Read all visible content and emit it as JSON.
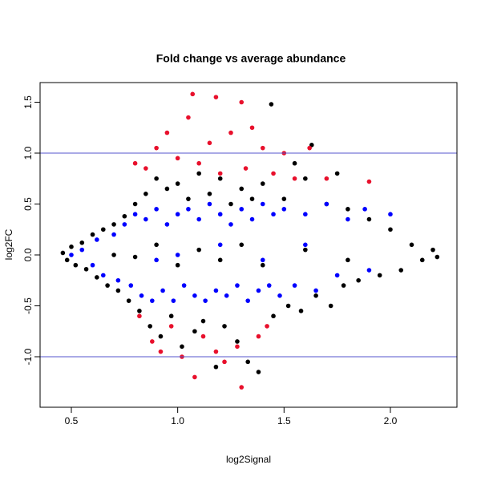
{
  "chart_data": {
    "type": "scatter",
    "title": "Fold change vs average abundance",
    "x_label": "log2Signal",
    "y_label": "log2FC",
    "xlim": [
      0.353,
      2.313
    ],
    "ylim": [
      -1.496,
      1.693
    ],
    "xticks": [
      0.5,
      {
        "value": 1.0,
        "label": "1.0"
      },
      1.5,
      {
        "value": 2.0,
        "label": "2.0"
      }
    ],
    "yticks": [
      {
        "value": -1.0,
        "label": "-1.0"
      },
      -0.5,
      {
        "value": 0.0,
        "label": "0.0"
      },
      0.5,
      {
        "value": 1.0,
        "label": "1.0"
      },
      1.5
    ],
    "hlines": [
      1.0,
      -1.0
    ],
    "hline_color": "#5555cc",
    "series": [
      {
        "color": "#000000",
        "x": [
          0.46,
          0.48,
          0.5,
          0.52,
          0.55,
          0.57,
          0.6,
          0.62,
          0.65,
          0.67,
          0.7,
          0.72,
          0.75,
          0.77,
          0.8,
          0.82,
          0.85,
          0.87,
          0.9,
          0.92,
          0.95,
          0.97,
          1.0,
          1.02,
          1.05,
          1.08,
          1.1,
          1.12,
          1.15,
          1.18,
          1.2,
          1.22,
          1.25,
          1.28,
          1.3,
          1.33,
          1.35,
          1.38,
          1.4,
          1.44,
          1.45,
          1.5,
          1.52,
          1.55,
          1.58,
          1.6,
          1.63,
          1.65,
          1.7,
          1.72,
          1.75,
          1.78,
          1.8,
          1.85,
          1.9,
          1.95,
          2.0,
          2.05,
          2.1,
          2.15,
          2.2,
          2.22,
          0.9,
          1.0,
          1.1,
          1.2,
          1.3,
          1.4,
          1.6,
          1.8,
          0.7,
          0.8
        ],
        "y": [
          0.02,
          -0.05,
          0.08,
          -0.1,
          0.12,
          -0.14,
          0.2,
          -0.22,
          0.25,
          -0.3,
          0.3,
          -0.35,
          0.38,
          -0.45,
          0.5,
          -0.55,
          0.6,
          -0.7,
          0.75,
          -0.8,
          0.65,
          -0.6,
          0.7,
          -0.9,
          0.55,
          -0.75,
          0.8,
          -0.65,
          0.6,
          -1.1,
          0.75,
          -0.7,
          0.5,
          -0.85,
          0.65,
          -1.05,
          0.55,
          -1.15,
          0.7,
          1.48,
          -0.6,
          0.55,
          -0.5,
          0.9,
          -0.55,
          0.75,
          1.08,
          -0.4,
          0.5,
          -0.5,
          0.8,
          -0.3,
          0.45,
          -0.25,
          0.35,
          -0.2,
          0.25,
          -0.15,
          0.1,
          -0.05,
          0.05,
          -0.02,
          0.1,
          -0.1,
          0.05,
          -0.05,
          0.1,
          -0.1,
          0.05,
          -0.05,
          0.0,
          -0.02
        ]
      },
      {
        "color": "#0000ff",
        "x": [
          0.5,
          0.55,
          0.6,
          0.62,
          0.65,
          0.7,
          0.72,
          0.75,
          0.78,
          0.8,
          0.83,
          0.85,
          0.88,
          0.9,
          0.93,
          0.95,
          0.98,
          1.0,
          1.03,
          1.05,
          1.08,
          1.1,
          1.13,
          1.15,
          1.18,
          1.2,
          1.23,
          1.25,
          1.28,
          1.3,
          1.33,
          1.35,
          1.38,
          1.4,
          1.43,
          1.45,
          1.48,
          1.5,
          1.55,
          1.6,
          1.65,
          1.7,
          1.75,
          1.8,
          1.88,
          1.9,
          2.0,
          1.0,
          1.2,
          1.4,
          0.9,
          1.6
        ],
        "y": [
          0.0,
          0.05,
          -0.1,
          0.15,
          -0.2,
          0.2,
          -0.25,
          0.3,
          -0.3,
          0.4,
          -0.4,
          0.35,
          -0.45,
          0.45,
          -0.35,
          0.3,
          -0.45,
          0.4,
          -0.3,
          0.45,
          -0.4,
          0.35,
          -0.45,
          0.5,
          -0.35,
          0.4,
          -0.4,
          0.3,
          -0.3,
          0.45,
          -0.45,
          0.35,
          -0.35,
          0.5,
          -0.3,
          0.4,
          -0.4,
          0.45,
          -0.3,
          0.4,
          -0.35,
          0.5,
          -0.2,
          0.35,
          0.45,
          -0.15,
          0.4,
          0.0,
          0.1,
          -0.05,
          -0.05,
          0.1
        ]
      },
      {
        "color": "#e8102c",
        "x": [
          0.8,
          0.82,
          0.85,
          0.88,
          0.9,
          0.92,
          0.95,
          0.97,
          1.0,
          1.02,
          1.05,
          1.07,
          1.08,
          1.1,
          1.12,
          1.15,
          1.18,
          1.2,
          1.22,
          1.25,
          1.28,
          1.3,
          1.3,
          1.32,
          1.35,
          1.38,
          1.4,
          1.42,
          1.45,
          1.5,
          1.55,
          1.62,
          1.7,
          1.9,
          1.18
        ],
        "y": [
          0.9,
          -0.6,
          0.85,
          -0.85,
          1.05,
          -0.95,
          1.2,
          -0.7,
          0.95,
          -1.0,
          1.35,
          1.58,
          -1.2,
          0.9,
          -0.8,
          1.1,
          -0.95,
          0.8,
          -1.05,
          1.2,
          -0.9,
          1.5,
          -1.3,
          0.85,
          1.25,
          -0.8,
          1.05,
          -0.7,
          0.8,
          1.0,
          0.75,
          1.05,
          0.75,
          0.72,
          1.55
        ]
      }
    ]
  }
}
